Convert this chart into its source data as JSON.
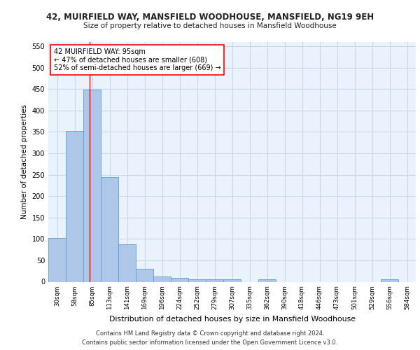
{
  "title1": "42, MUIRFIELD WAY, MANSFIELD WOODHOUSE, MANSFIELD, NG19 9EH",
  "title2": "Size of property relative to detached houses in Mansfield Woodhouse",
  "xlabel": "Distribution of detached houses by size in Mansfield Woodhouse",
  "ylabel": "Number of detached properties",
  "footer1": "Contains HM Land Registry data © Crown copyright and database right 2024.",
  "footer2": "Contains public sector information licensed under the Open Government Licence v3.0.",
  "bar_labels": [
    "30sqm",
    "58sqm",
    "85sqm",
    "113sqm",
    "141sqm",
    "169sqm",
    "196sqm",
    "224sqm",
    "252sqm",
    "279sqm",
    "307sqm",
    "335sqm",
    "362sqm",
    "390sqm",
    "418sqm",
    "446sqm",
    "473sqm",
    "501sqm",
    "529sqm",
    "556sqm",
    "584sqm"
  ],
  "bar_values": [
    103,
    353,
    449,
    245,
    87,
    30,
    13,
    9,
    5,
    5,
    5,
    0,
    5,
    0,
    0,
    0,
    0,
    0,
    0,
    5,
    0
  ],
  "bar_color": "#aec6e8",
  "bar_edge_color": "#5a9fd4",
  "grid_color": "#c8d8e8",
  "bg_color": "#eaf2fb",
  "property_label": "42 MUIRFIELD WAY: 95sqm",
  "annotation_line1": "← 47% of detached houses are smaller (608)",
  "annotation_line2": "52% of semi-detached houses are larger (669) →",
  "ylim": [
    0,
    560
  ],
  "yticks": [
    0,
    50,
    100,
    150,
    200,
    250,
    300,
    350,
    400,
    450,
    500,
    550
  ]
}
